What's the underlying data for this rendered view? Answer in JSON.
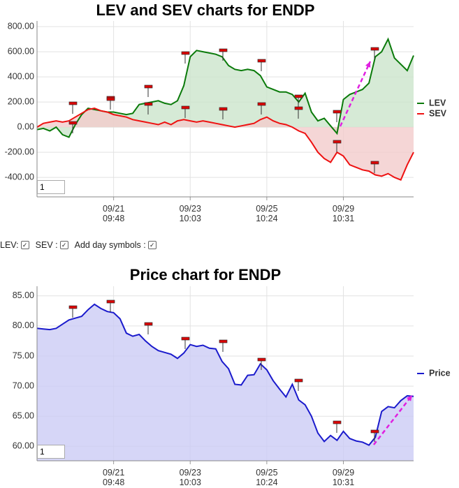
{
  "chart_data": [
    {
      "type": "line",
      "title": "LEV and SEV charts for ENDP",
      "xlim": [
        0,
        59
      ],
      "xticks": [
        {
          "value": 12,
          "label": "09/21 09:48"
        },
        {
          "value": 24,
          "label": "09/23 10:03"
        },
        {
          "value": 36,
          "label": "09/25 10:24"
        },
        {
          "value": 48,
          "label": "09/29 10:31"
        }
      ],
      "ylim": [
        -555,
        845
      ],
      "yticks": [
        {
          "value": 800,
          "label": "800.00"
        },
        {
          "value": 600,
          "label": "600.00"
        },
        {
          "value": 400,
          "label": "400.00"
        },
        {
          "value": 200,
          "label": "200.00"
        },
        {
          "value": 0,
          "label": "0.00"
        },
        {
          "value": -200,
          "label": "-200.00"
        },
        {
          "value": -400,
          "label": "-400.00"
        }
      ],
      "grid": true,
      "legend": "right",
      "fill": true,
      "series": [
        {
          "name": "LEV",
          "color": "#0a7a0a",
          "fill_color": "#cce5cc",
          "values": [
            -20,
            -10,
            -30,
            0,
            -60,
            -80,
            20,
            100,
            150,
            140,
            130,
            120,
            120,
            110,
            100,
            110,
            180,
            190,
            200,
            210,
            190,
            180,
            210,
            330,
            560,
            610,
            600,
            590,
            580,
            560,
            490,
            460,
            450,
            460,
            450,
            410,
            320,
            300,
            280,
            280,
            260,
            200,
            270,
            120,
            50,
            70,
            10,
            -50,
            220,
            260,
            280,
            300,
            350,
            560,
            600,
            700,
            550,
            500,
            450,
            570
          ]
        },
        {
          "name": "SEV",
          "color": "#ee1111",
          "fill_color": "#f2cccc",
          "values": [
            0,
            30,
            40,
            50,
            40,
            50,
            80,
            110,
            140,
            150,
            130,
            120,
            100,
            90,
            80,
            60,
            50,
            40,
            30,
            20,
            40,
            20,
            50,
            60,
            50,
            40,
            50,
            40,
            30,
            20,
            10,
            0,
            10,
            20,
            30,
            60,
            80,
            50,
            30,
            20,
            0,
            -30,
            -50,
            -120,
            -200,
            -250,
            -280,
            -200,
            -230,
            -300,
            -320,
            -340,
            -350,
            -380,
            -390,
            -370,
            -400,
            -420,
            -300,
            -200
          ]
        }
      ]
    },
    {
      "type": "line",
      "title": "Price chart for ENDP",
      "xlim": [
        0,
        59
      ],
      "xticks": [
        {
          "value": 12,
          "label": "09/21 09:48"
        },
        {
          "value": 24,
          "label": "09/23 10:03"
        },
        {
          "value": 36,
          "label": "09/25 10:24"
        },
        {
          "value": 48,
          "label": "09/29 10:31"
        }
      ],
      "ylim": [
        57.6,
        86.6
      ],
      "yticks": [
        {
          "value": 85,
          "label": "85.00"
        },
        {
          "value": 80,
          "label": "80.00"
        },
        {
          "value": 75,
          "label": "75.00"
        },
        {
          "value": 70,
          "label": "70.00"
        },
        {
          "value": 65,
          "label": "65.00"
        },
        {
          "value": 60,
          "label": "60.00"
        }
      ],
      "grid": true,
      "legend": "right",
      "fill": true,
      "series": [
        {
          "name": "Price",
          "color": "#1a1acc",
          "fill_color": "#ccccf5",
          "values": [
            79.6,
            79.5,
            79.4,
            79.6,
            80.3,
            81.0,
            81.3,
            81.6,
            82.7,
            83.6,
            82.9,
            82.4,
            82.2,
            81.2,
            78.8,
            78.3,
            78.6,
            77.5,
            76.6,
            75.9,
            75.6,
            75.3,
            74.6,
            75.5,
            76.9,
            76.6,
            76.8,
            76.3,
            76.2,
            74.1,
            72.9,
            70.3,
            70.2,
            71.8,
            71.9,
            73.7,
            72.7,
            70.9,
            69.5,
            68.2,
            70.3,
            67.7,
            66.9,
            65.0,
            62.2,
            60.8,
            61.8,
            61.0,
            62.5,
            61.3,
            60.9,
            60.7,
            60.2,
            61.5,
            65.8,
            66.6,
            66.4,
            67.6,
            68.4,
            68.3
          ]
        }
      ]
    }
  ],
  "controls": {
    "labels": [
      "LEV:",
      "SEV :",
      "Add day symbols :"
    ],
    "zoom_inputs": [
      "1",
      "1"
    ]
  }
}
